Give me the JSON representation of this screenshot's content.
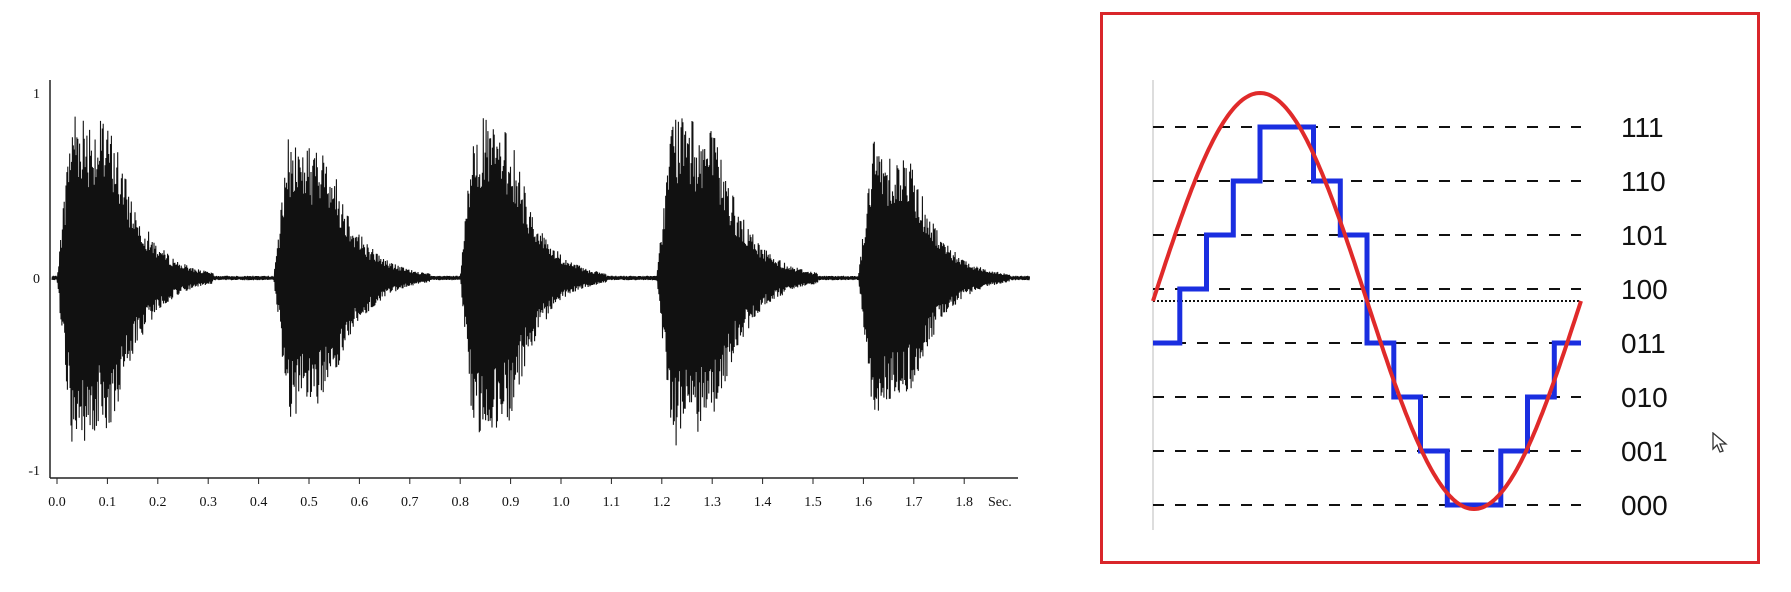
{
  "waveform": {
    "y_tick_labels": [
      "1",
      "0",
      "-1"
    ],
    "x_tick_labels": [
      "0.0",
      "0.1",
      "0.2",
      "0.3",
      "0.4",
      "0.5",
      "0.6",
      "0.7",
      "0.8",
      "0.9",
      "1.0",
      "1.1",
      "1.2",
      "1.3",
      "1.4",
      "1.5",
      "1.6",
      "1.7",
      "1.8"
    ],
    "x_unit": "Sec.",
    "bursts": [
      {
        "start": 0.0,
        "peak": 0.95,
        "decay_end": 0.25
      },
      {
        "start": 0.43,
        "peak": 0.78,
        "decay_end": 0.68
      },
      {
        "start": 0.8,
        "peak": 0.9,
        "decay_end": 1.03
      },
      {
        "start": 1.19,
        "peak": 0.92,
        "decay_end": 1.45
      },
      {
        "start": 1.59,
        "peak": 0.75,
        "decay_end": 1.83
      }
    ],
    "colors": {
      "wave": "#111111",
      "axis": "#222222"
    }
  },
  "quantization": {
    "codes": [
      "111",
      "110",
      "101",
      "100",
      "011",
      "010",
      "001",
      "000"
    ],
    "colors": {
      "sine": "#e02a2a",
      "steps": "#1a2ee0",
      "dashes": "#111111",
      "frame": "#d9262a"
    },
    "step_levels": [
      3,
      4,
      5,
      6,
      7,
      7,
      6,
      5,
      3,
      2,
      1,
      0,
      0,
      1,
      2,
      3
    ]
  }
}
